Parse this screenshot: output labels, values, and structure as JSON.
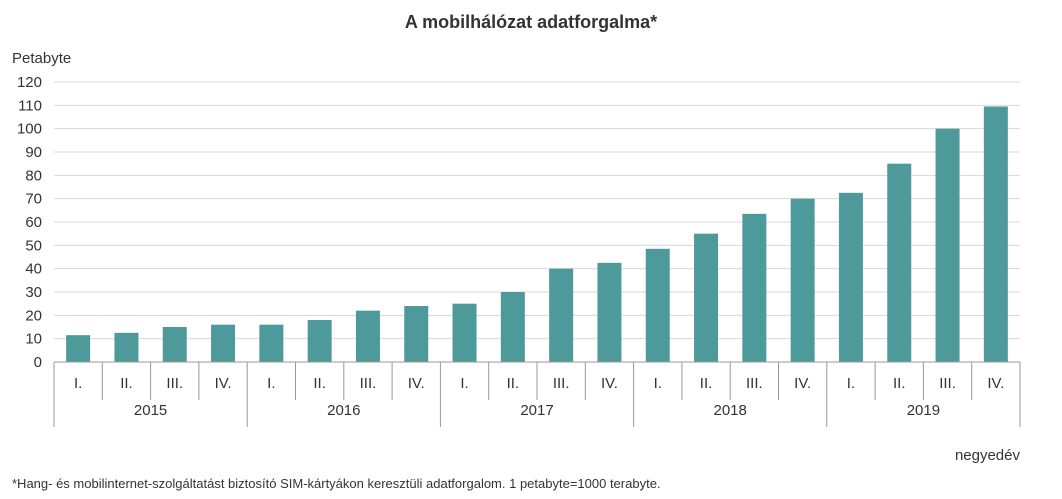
{
  "title": "A mobilhálózat adatforgalma*",
  "footnote": "*Hang- és mobilinternet-szolgáltatást biztosító SIM-kártyákon keresztüli adatforgalom. 1 petabyte=1000 terabyte.",
  "colors": {
    "bar": "#4e9a9b",
    "grid": "#d8d8d8",
    "axis": "#999999"
  },
  "chart_data": {
    "type": "bar",
    "title": "A mobilhálózat adatforgalma*",
    "ylabel": "Petabyte",
    "xlabel": "negyedév",
    "ylim": [
      0,
      120
    ],
    "yticks": [
      "0",
      "10",
      "20",
      "30",
      "40",
      "50",
      "60",
      "70",
      "80",
      "90",
      "100",
      "110",
      "120"
    ],
    "grid": true,
    "categories": [
      "I.",
      "II.",
      "III.",
      "IV.",
      "I.",
      "II.",
      "III.",
      "IV.",
      "I.",
      "II.",
      "III.",
      "IV.",
      "I.",
      "II.",
      "III.",
      "IV.",
      "I.",
      "II.",
      "III.",
      "IV."
    ],
    "groups": [
      "2015",
      "2016",
      "2017",
      "2018",
      "2019"
    ],
    "values": [
      11.5,
      12.5,
      15,
      16,
      16,
      18,
      22,
      24,
      25,
      30,
      40,
      42.5,
      48.5,
      55,
      63.5,
      70,
      72.5,
      85,
      100,
      109.5
    ]
  }
}
